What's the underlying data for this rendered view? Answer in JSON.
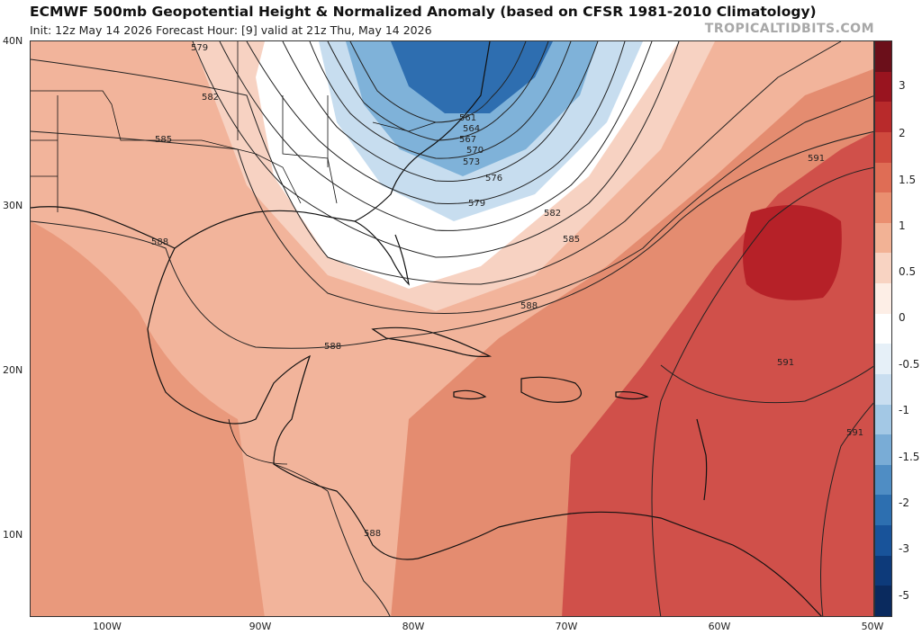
{
  "title": "ECMWF 500mb Geopotential Height & Normalized Anomaly (based on CFSR 1981-2010 Climatology)",
  "subtitle": "Init: 12z May 14 2026   Forecast Hour: [9]   valid at 21z Thu, May 14 2026",
  "brand": "TROPICALTIDBITS.COM",
  "map": {
    "lat_labels": [
      "40N",
      "30N",
      "20N",
      "10N"
    ],
    "lon_labels": [
      "100W",
      "90W",
      "80W",
      "70W",
      "60W",
      "50W"
    ],
    "contour_labels": [
      "579",
      "582",
      "585",
      "588",
      "561",
      "564",
      "567",
      "570",
      "573",
      "576",
      "579",
      "582",
      "585",
      "588",
      "591",
      "591",
      "591",
      "588",
      "588"
    ],
    "colors": {
      "deep_red": "#b62128",
      "red": "#d0504a",
      "salmon": "#e48c70",
      "light_salmon": "#f2b49b",
      "peach": "#f7d2c2",
      "white": "#ffffff",
      "light_blue": "#c7ddef",
      "blue": "#7fb2d9",
      "deep_blue": "#2e6eb0",
      "navy": "#1b4f8f"
    }
  },
  "colorbar": {
    "ticks": [
      "3",
      "2",
      "1.5",
      "1",
      "0.5",
      "0",
      "-0.5",
      "-1",
      "-1.5",
      "-2",
      "-3",
      "-5"
    ],
    "segment_colors": [
      "#6b0f1a",
      "#99141f",
      "#b82a2b",
      "#cf4a3e",
      "#df6d55",
      "#ea8f70",
      "#f2b295",
      "#f8d3c2",
      "#fdeee6",
      "#ffffff",
      "#e6f0f8",
      "#c9def0",
      "#a3c8e5",
      "#79acd6",
      "#4f8dc4",
      "#2d6fb0",
      "#18539a",
      "#0d3a7a",
      "#0a2a5e"
    ]
  }
}
